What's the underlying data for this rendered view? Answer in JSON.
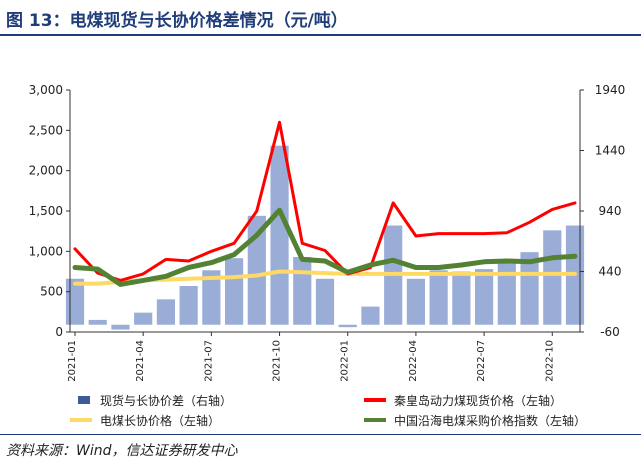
{
  "title": "图 13：电煤现货与长协价格差情况（元/吨）",
  "source": "资料来源：Wind，信达证券研发中心",
  "chart_data": {
    "type": "combo",
    "x": [
      "2021-01",
      "2021-02",
      "2021-03",
      "2021-04",
      "2021-05",
      "2021-06",
      "2021-07",
      "2021-08",
      "2021-09",
      "2021-10",
      "2021-11",
      "2021-12",
      "2022-01",
      "2022-02",
      "2022-03",
      "2022-04",
      "2022-05",
      "2022-06",
      "2022-07",
      "2022-08",
      "2022-09",
      "2022-10",
      "2022-11"
    ],
    "x_tick_labels": [
      "2021-01",
      "2021-04",
      "2021-07",
      "2021-10",
      "2022-01",
      "2022-04",
      "2022-07",
      "2022-10"
    ],
    "y_left": {
      "ticks": [
        "0",
        "500",
        "1,000",
        "1,500",
        "2,000",
        "2,500",
        "3,000"
      ],
      "ylim": [
        0,
        3000
      ]
    },
    "y_right": {
      "ticks": [
        "-60",
        "440",
        "940",
        "1440",
        "1940"
      ],
      "ylim": [
        -60,
        1940
      ]
    },
    "series": [
      {
        "name": "现货与长协价差（右轴）",
        "type": "bar",
        "axis": "right",
        "color": "#8ea4d2",
        "values": [
          380,
          40,
          -40,
          100,
          210,
          320,
          450,
          550,
          900,
          1480,
          560,
          380,
          -20,
          150,
          820,
          380,
          450,
          440,
          460,
          520,
          600,
          780,
          820
        ]
      },
      {
        "name": "秦皇岛动力煤现货价格（左轴）",
        "type": "line",
        "axis": "left",
        "color": "#ff0000",
        "values": [
          1030,
          730,
          640,
          720,
          900,
          880,
          1000,
          1100,
          1500,
          2600,
          1100,
          1010,
          720,
          800,
          1600,
          1190,
          1220,
          1220,
          1220,
          1230,
          1360,
          1520,
          1600
        ]
      },
      {
        "name": "电煤长协价格（左轴）",
        "type": "line",
        "axis": "left",
        "color": "#ffd966",
        "values": [
          600,
          600,
          620,
          640,
          650,
          660,
          670,
          680,
          700,
          750,
          740,
          730,
          720,
          720,
          720,
          720,
          720,
          720,
          720,
          720,
          720,
          720,
          720
        ]
      },
      {
        "name": "中国沿海电煤采购价格指数（左轴）",
        "type": "line",
        "axis": "left",
        "color": "#548235",
        "values": [
          800,
          780,
          590,
          640,
          690,
          800,
          860,
          960,
          1200,
          1510,
          900,
          880,
          740,
          830,
          890,
          800,
          800,
          830,
          870,
          880,
          870,
          920,
          940
        ]
      }
    ],
    "legend_position": "bottom",
    "grid": false
  }
}
